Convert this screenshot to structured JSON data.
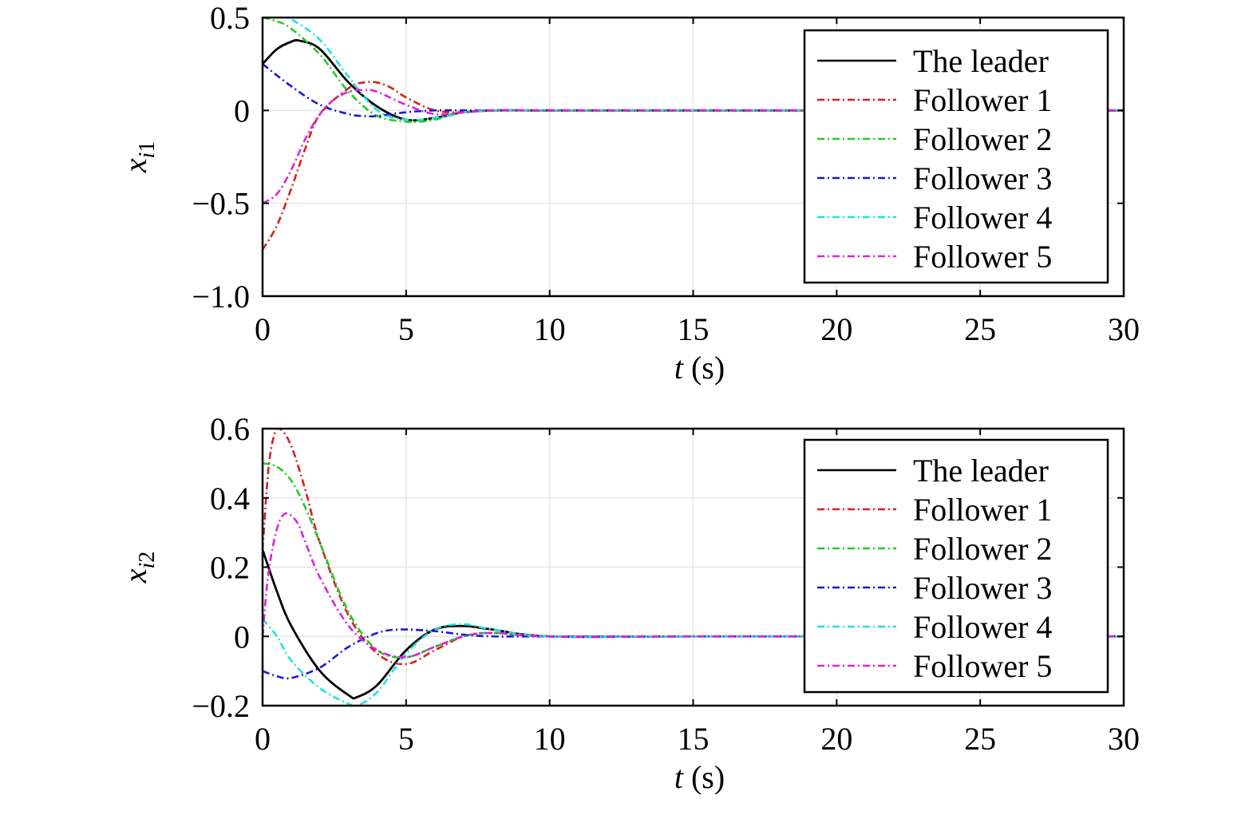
{
  "legend_placement": "top-right",
  "grid": true,
  "chart_data": [
    {
      "type": "line",
      "ylabel": {
        "base": "x",
        "sub": "i1"
      },
      "xlabel": {
        "var": "t",
        "unit": " (s)"
      },
      "xlim": [
        0,
        30
      ],
      "ylim": [
        -1.0,
        0.5
      ],
      "xticks": [
        0,
        5,
        10,
        15,
        20,
        25,
        30
      ],
      "xtick_labels": [
        "0",
        "5",
        "10",
        "15",
        "20",
        "25",
        "30"
      ],
      "yticks": [
        -1.0,
        -0.5,
        0,
        0.5
      ],
      "ytick_labels": [
        "−1.0",
        "−0.5",
        "0",
        "0.5"
      ],
      "series": [
        {
          "name": "The leader",
          "color": "#000000",
          "dash": "solid",
          "x": [
            0,
            0.5,
            1,
            1.3,
            2,
            3,
            4,
            5,
            6,
            7,
            8,
            10,
            15,
            30
          ],
          "y": [
            0.25,
            0.33,
            0.37,
            0.375,
            0.33,
            0.15,
            0.02,
            -0.05,
            -0.04,
            -0.01,
            0.0,
            0.0,
            0.0,
            0.0
          ]
        },
        {
          "name": "Follower 1",
          "color": "#d42020",
          "dash": "dashdot",
          "x": [
            0,
            0.5,
            1,
            1.5,
            2,
            3,
            3.5,
            4,
            4.5,
            5,
            6,
            7,
            8,
            10,
            15,
            30
          ],
          "y": [
            -0.75,
            -0.62,
            -0.42,
            -0.2,
            -0.02,
            0.12,
            0.15,
            0.15,
            0.12,
            0.07,
            0.0,
            -0.01,
            0.0,
            0.0,
            0.0,
            0.0
          ]
        },
        {
          "name": "Follower 2",
          "color": "#22cc22",
          "dash": "dashdot",
          "x": [
            0,
            0.5,
            1,
            2,
            3,
            4,
            5,
            5.5,
            6,
            7,
            8,
            10,
            15,
            30
          ],
          "y": [
            0.5,
            0.48,
            0.44,
            0.3,
            0.1,
            -0.03,
            -0.06,
            -0.06,
            -0.05,
            -0.01,
            0.0,
            0.0,
            0.0,
            0.0
          ]
        },
        {
          "name": "Follower 3",
          "color": "#1a1acc",
          "dash": "dashdot",
          "x": [
            0,
            1,
            2,
            3,
            3.5,
            4,
            5,
            6,
            7,
            8,
            10,
            15,
            30
          ],
          "y": [
            0.25,
            0.13,
            0.03,
            -0.02,
            -0.03,
            -0.03,
            -0.01,
            0.0,
            0.0,
            0.0,
            0.0,
            0.0,
            0.0
          ]
        },
        {
          "name": "Follower 4",
          "color": "#22e0e0",
          "dash": "dashdot",
          "x": [
            0,
            0.5,
            1,
            2,
            3,
            4,
            5,
            6,
            7,
            8,
            10,
            15,
            30
          ],
          "y": [
            0.5,
            0.51,
            0.49,
            0.38,
            0.18,
            0.0,
            -0.05,
            -0.04,
            -0.01,
            0.0,
            0.0,
            0.0,
            0.0
          ]
        },
        {
          "name": "Follower 5",
          "color": "#dd22dd",
          "dash": "dashdot",
          "x": [
            0,
            0.5,
            1,
            1.5,
            2,
            2.5,
            3,
            3.5,
            4,
            5,
            6,
            7,
            8,
            10,
            15,
            30
          ],
          "y": [
            -0.5,
            -0.45,
            -0.32,
            -0.15,
            -0.02,
            0.06,
            0.1,
            0.11,
            0.1,
            0.03,
            -0.02,
            -0.01,
            0.0,
            0.0,
            0.0,
            0.0
          ]
        }
      ]
    },
    {
      "type": "line",
      "ylabel": {
        "base": "x",
        "sub": "i2"
      },
      "xlabel": {
        "var": "t",
        "unit": " (s)"
      },
      "xlim": [
        0,
        30
      ],
      "ylim": [
        -0.2,
        0.6
      ],
      "xticks": [
        0,
        5,
        10,
        15,
        20,
        25,
        30
      ],
      "xtick_labels": [
        "0",
        "5",
        "10",
        "15",
        "20",
        "25",
        "30"
      ],
      "yticks": [
        -0.2,
        0,
        0.2,
        0.4,
        0.6
      ],
      "ytick_labels": [
        "−0.2",
        "0",
        "0.2",
        "0.4",
        "0.6"
      ],
      "series": [
        {
          "name": "The leader",
          "color": "#000000",
          "dash": "solid",
          "x": [
            0,
            0.5,
            1,
            2,
            3,
            3.3,
            4,
            5,
            6,
            7,
            8,
            10,
            15,
            30
          ],
          "y": [
            0.25,
            0.13,
            0.03,
            -0.1,
            -0.17,
            -0.175,
            -0.14,
            -0.04,
            0.02,
            0.03,
            0.02,
            0.0,
            0.0,
            0.0
          ]
        },
        {
          "name": "Follower 1",
          "color": "#d42020",
          "dash": "dashdot",
          "x": [
            0,
            0.2,
            0.4,
            0.6,
            1,
            1.5,
            2,
            3,
            4,
            5,
            6,
            7,
            8,
            10,
            15,
            30
          ],
          "y": [
            0.25,
            0.48,
            0.58,
            0.6,
            0.55,
            0.42,
            0.27,
            0.06,
            -0.05,
            -0.08,
            -0.04,
            0.0,
            0.01,
            0.0,
            0.0,
            0.0
          ]
        },
        {
          "name": "Follower 2",
          "color": "#22cc22",
          "dash": "dashdot",
          "x": [
            0,
            0.5,
            1,
            1.5,
            2,
            3,
            4,
            5,
            6,
            7,
            8,
            10,
            15,
            30
          ],
          "y": [
            0.5,
            0.49,
            0.45,
            0.37,
            0.27,
            0.07,
            -0.04,
            -0.06,
            -0.03,
            0.0,
            0.01,
            0.0,
            0.0,
            0.0
          ]
        },
        {
          "name": "Follower 3",
          "color": "#1a1acc",
          "dash": "dashdot",
          "x": [
            0,
            0.5,
            1,
            2,
            3,
            4,
            4.8,
            6,
            7,
            8,
            10,
            15,
            30
          ],
          "y": [
            -0.1,
            -0.115,
            -0.12,
            -0.09,
            -0.03,
            0.01,
            0.02,
            0.015,
            0.005,
            0.0,
            0.0,
            0.0,
            0.0
          ]
        },
        {
          "name": "Follower 4",
          "color": "#22e0e0",
          "dash": "dashdot",
          "x": [
            0,
            0.5,
            1,
            2,
            3,
            3.3,
            4,
            5,
            6,
            7,
            8,
            10,
            15,
            30
          ],
          "y": [
            0.05,
            0.0,
            -0.07,
            -0.15,
            -0.195,
            -0.2,
            -0.16,
            -0.05,
            0.02,
            0.035,
            0.02,
            0.0,
            0.0,
            0.0
          ]
        },
        {
          "name": "Follower 5",
          "color": "#dd22dd",
          "dash": "dashdot",
          "x": [
            0,
            0.2,
            0.5,
            0.8,
            1.2,
            1.5,
            2,
            3,
            4,
            5,
            6,
            7,
            8,
            10,
            15,
            30
          ],
          "y": [
            0.0,
            0.18,
            0.31,
            0.355,
            0.33,
            0.27,
            0.17,
            0.03,
            -0.04,
            -0.06,
            -0.03,
            0.0,
            0.01,
            0.0,
            0.0,
            0.0
          ]
        }
      ]
    }
  ]
}
